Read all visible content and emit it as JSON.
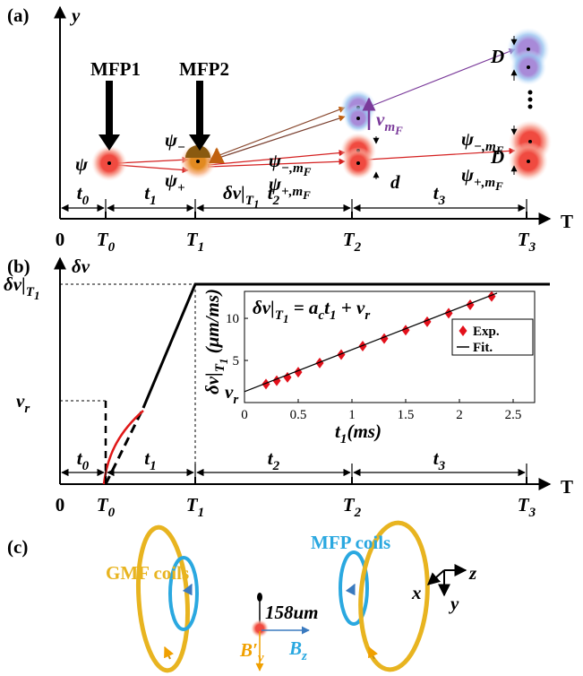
{
  "panel_a": {
    "label": "(a)",
    "y_axis": "y",
    "t_axis": "T",
    "mfp1": "MFP1",
    "mfp2": "MFP2",
    "psi": "ψ",
    "psi_minus": [
      "ψ",
      {
        "sub": "−"
      }
    ],
    "psi_plus": [
      "ψ",
      {
        "sub": "+"
      }
    ],
    "dv": [
      "δv|",
      {
        "sub": "T"
      },
      {
        "subsub": "1"
      }
    ],
    "psi_minus_mf": [
      "ψ",
      {
        "sub": "−,m"
      },
      {
        "subsub": "F"
      }
    ],
    "psi_plus_mf": [
      "ψ",
      {
        "sub": "+,m"
      },
      {
        "subsub": "F"
      }
    ],
    "v_mf": [
      "v",
      {
        "sub": "m"
      },
      {
        "subsub": "F"
      }
    ],
    "d": "d",
    "D_top": "D",
    "D_bottom": "D",
    "psi_minus_mf_right": [
      "ψ",
      {
        "sub": "−,m"
      },
      {
        "subsub": "F"
      }
    ],
    "psi_plus_mf_right": [
      "ψ",
      {
        "sub": "+,m"
      },
      {
        "subsub": "F"
      }
    ],
    "intervals": [
      [
        "t",
        {
          "sub": "0"
        }
      ],
      [
        "t",
        {
          "sub": "1"
        }
      ],
      [
        "t",
        {
          "sub": "2"
        }
      ],
      [
        "t",
        {
          "sub": "3"
        }
      ]
    ],
    "times": [
      "0",
      [
        "T",
        {
          "sub": "0"
        }
      ],
      [
        "T",
        {
          "sub": "1"
        }
      ],
      [
        "T",
        {
          "sub": "2"
        }
      ],
      [
        "T",
        {
          "sub": "3"
        }
      ]
    ]
  },
  "panel_b": {
    "label": "(b)",
    "y_axis": "δv",
    "t_axis": "T",
    "dv_level": [
      "δv|",
      {
        "sub": "T"
      },
      {
        "subsub": "1"
      }
    ],
    "vr_level": [
      "v",
      {
        "sub": "r"
      }
    ],
    "intervals": [
      [
        "t",
        {
          "sub": "0"
        }
      ],
      [
        "t",
        {
          "sub": "1"
        }
      ],
      [
        "t",
        {
          "sub": "2"
        }
      ],
      [
        "t",
        {
          "sub": "3"
        }
      ]
    ],
    "times": [
      "0",
      [
        "T",
        {
          "sub": "0"
        }
      ],
      [
        "T",
        {
          "sub": "1"
        }
      ],
      [
        "T",
        {
          "sub": "2"
        }
      ],
      [
        "T",
        {
          "sub": "3"
        }
      ]
    ]
  },
  "chart_data": {
    "type": "scatter",
    "title": [
      "δv|",
      {
        "sub": "T"
      },
      {
        "subsub": "1"
      },
      " = a",
      {
        "sub": "c"
      },
      "t",
      {
        "sub": "1"
      },
      " + v",
      {
        "sub": "r"
      }
    ],
    "x_label": [
      "t",
      {
        "sub": "1"
      },
      "(ms)"
    ],
    "y_label": [
      "δv|",
      {
        "sub": "T"
      },
      {
        "subsub": "1"
      },
      " (μm/ms)"
    ],
    "intercept_label": [
      "v",
      {
        "sub": "r"
      }
    ],
    "xlim": [
      0,
      2.7
    ],
    "ylim": [
      0,
      13.2
    ],
    "xticks": [
      0,
      0.5,
      1,
      1.5,
      2,
      2.5
    ],
    "yticks": [
      5,
      10
    ],
    "series": [
      {
        "name": "Exp.",
        "color": "#e3101b",
        "x": [
          0.2,
          0.3,
          0.4,
          0.5,
          0.7,
          0.9,
          1.1,
          1.3,
          1.5,
          1.7,
          1.9,
          2.1,
          2.3
        ],
        "values": [
          2.2,
          2.6,
          3.0,
          3.6,
          4.7,
          5.7,
          6.7,
          7.6,
          8.6,
          9.6,
          10.6,
          11.6,
          12.6
        ]
      },
      {
        "name": "Fit.",
        "color": "#000000",
        "x": [
          0,
          2.35
        ],
        "values": [
          1.3,
          13.0
        ]
      }
    ]
  },
  "panel_c": {
    "label": "(c)",
    "gmf": "GMF coils",
    "mfp": "MFP coils",
    "distance": "158um",
    "by": [
      "B′",
      {
        "sub": "y"
      }
    ],
    "bz": [
      "B",
      {
        "sub": "z"
      }
    ],
    "x": "x",
    "y": "y",
    "z": "z"
  }
}
